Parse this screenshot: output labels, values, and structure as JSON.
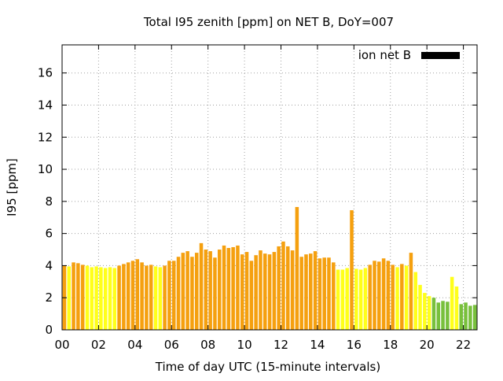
{
  "chart_data": {
    "type": "bar",
    "title": "Total I95 zenith [ppm] on NET B, DoY=007",
    "xlabel": "Time of day UTC (15-minute intervals)",
    "ylabel": "I95 [ppm]",
    "xlim": [
      0,
      22.75
    ],
    "ylim": [
      0,
      17.75
    ],
    "grid": true,
    "legend": {
      "position": "top-right",
      "entries": [
        {
          "label": "ion net B",
          "color": "#000000"
        }
      ]
    },
    "x_ticks": [
      "00",
      "02",
      "04",
      "06",
      "08",
      "10",
      "12",
      "14",
      "16",
      "18",
      "20",
      "22"
    ],
    "y_ticks": [
      "0",
      "2",
      "4",
      "6",
      "8",
      "10",
      "12",
      "14",
      "16"
    ],
    "bin_width_hours": 0.25,
    "color_classes": {
      "orange": "#f5a00f",
      "yellow": "#ffff1a",
      "green": "#78c03c"
    },
    "values": [
      4.0,
      3.95,
      4.2,
      4.15,
      4.05,
      4.0,
      3.9,
      3.95,
      3.9,
      3.85,
      3.9,
      3.85,
      4.0,
      4.1,
      4.2,
      4.3,
      4.4,
      4.2,
      4.0,
      4.05,
      3.95,
      3.9,
      4.0,
      4.3,
      4.3,
      4.55,
      4.8,
      4.9,
      4.55,
      4.8,
      5.4,
      5.0,
      4.9,
      4.5,
      5.0,
      5.25,
      5.1,
      5.15,
      5.25,
      4.7,
      4.85,
      4.3,
      4.65,
      4.95,
      4.75,
      4.7,
      4.85,
      5.2,
      5.5,
      5.2,
      4.95,
      7.65,
      4.55,
      4.7,
      4.75,
      4.9,
      4.45,
      4.5,
      4.5,
      4.2,
      3.75,
      3.75,
      3.85,
      7.45,
      3.8,
      3.75,
      3.85,
      4.05,
      4.3,
      4.25,
      4.45,
      4.3,
      4.05,
      3.9,
      4.1,
      4.0,
      4.8,
      3.6,
      2.8,
      2.3,
      2.1,
      2.0,
      1.7,
      1.8,
      1.75,
      3.3,
      2.7,
      1.6,
      1.7,
      1.5,
      1.55
    ],
    "colors": [
      "orange",
      "yellow",
      "orange",
      "orange",
      "orange",
      "yellow",
      "yellow",
      "yellow",
      "yellow",
      "yellow",
      "yellow",
      "yellow",
      "orange",
      "orange",
      "orange",
      "orange",
      "orange",
      "orange",
      "orange",
      "orange",
      "yellow",
      "yellow",
      "orange",
      "orange",
      "orange",
      "orange",
      "orange",
      "orange",
      "orange",
      "orange",
      "orange",
      "orange",
      "orange",
      "orange",
      "orange",
      "orange",
      "orange",
      "orange",
      "orange",
      "orange",
      "orange",
      "orange",
      "orange",
      "orange",
      "orange",
      "orange",
      "orange",
      "orange",
      "orange",
      "orange",
      "orange",
      "orange",
      "orange",
      "orange",
      "orange",
      "orange",
      "orange",
      "orange",
      "orange",
      "orange",
      "yellow",
      "yellow",
      "yellow",
      "orange",
      "yellow",
      "yellow",
      "yellow",
      "orange",
      "orange",
      "orange",
      "orange",
      "orange",
      "orange",
      "yellow",
      "orange",
      "yellow",
      "orange",
      "yellow",
      "yellow",
      "yellow",
      "yellow",
      "green",
      "green",
      "green",
      "green",
      "yellow",
      "yellow",
      "green",
      "green",
      "green",
      "green"
    ]
  }
}
